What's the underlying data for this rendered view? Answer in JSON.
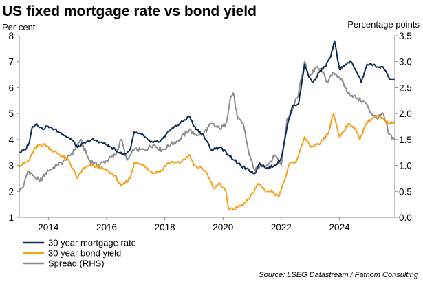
{
  "chart_data": {
    "type": "line",
    "title": "US fixed mortgage rate vs bond yield",
    "ylabel_left": "Per cent",
    "ylabel_right": "Percentage points",
    "source": "Source: LSEG Datastream / Fathom Consulting",
    "xlim": [
      2013.0,
      2025.9
    ],
    "ylim_left": [
      1,
      8
    ],
    "ylim_right": [
      0.0,
      3.5
    ],
    "x_ticks": [
      2014,
      2016,
      2018,
      2020,
      2022,
      2024
    ],
    "x_tick_labels": [
      "2014",
      "2016",
      "2018",
      "2020",
      "2022",
      "2024"
    ],
    "y_left_ticks": [
      1,
      2,
      3,
      4,
      5,
      6,
      7,
      8
    ],
    "y_left_tick_labels": [
      "1",
      "2",
      "3",
      "4",
      "5",
      "6",
      "7",
      "8"
    ],
    "y_right_ticks": [
      0.0,
      0.5,
      1.0,
      1.5,
      2.0,
      2.5,
      3.0,
      3.5
    ],
    "y_right_tick_labels": [
      "0.0",
      "0.5",
      "1.0",
      "1.5",
      "2.0",
      "2.5",
      "3.0",
      "3.5"
    ],
    "colors": {
      "mortgage": "#0d2b52",
      "bond": "#f5a01a",
      "spread": "#8c8c8c",
      "axis": "#888888"
    },
    "legend": [
      {
        "key": "mortgage",
        "label": "30 year mortgage rate"
      },
      {
        "key": "bond",
        "label": "30 year bond yield"
      },
      {
        "key": "spread",
        "label": "Spread (RHS)"
      }
    ],
    "series": [
      {
        "key": "mortgage",
        "name": "30 year mortgage rate",
        "axis": "left",
        "points": [
          [
            2013.0,
            3.5
          ],
          [
            2013.2,
            3.6
          ],
          [
            2013.35,
            3.9
          ],
          [
            2013.45,
            4.5
          ],
          [
            2013.6,
            4.6
          ],
          [
            2013.8,
            4.4
          ],
          [
            2013.95,
            4.5
          ],
          [
            2014.2,
            4.4
          ],
          [
            2014.5,
            4.2
          ],
          [
            2014.8,
            4.0
          ],
          [
            2015.0,
            3.7
          ],
          [
            2015.3,
            3.9
          ],
          [
            2015.5,
            4.0
          ],
          [
            2015.8,
            3.9
          ],
          [
            2016.0,
            3.8
          ],
          [
            2016.3,
            3.6
          ],
          [
            2016.6,
            3.4
          ],
          [
            2016.8,
            3.6
          ],
          [
            2016.95,
            4.3
          ],
          [
            2017.2,
            4.2
          ],
          [
            2017.5,
            3.9
          ],
          [
            2017.8,
            3.9
          ],
          [
            2018.0,
            4.1
          ],
          [
            2018.2,
            4.4
          ],
          [
            2018.5,
            4.6
          ],
          [
            2018.85,
            4.9
          ],
          [
            2019.0,
            4.5
          ],
          [
            2019.3,
            4.2
          ],
          [
            2019.6,
            3.6
          ],
          [
            2019.9,
            3.7
          ],
          [
            2020.2,
            3.4
          ],
          [
            2020.4,
            3.2
          ],
          [
            2020.6,
            3.0
          ],
          [
            2020.9,
            2.8
          ],
          [
            2021.1,
            2.7
          ],
          [
            2021.25,
            3.1
          ],
          [
            2021.5,
            2.9
          ],
          [
            2021.8,
            3.0
          ],
          [
            2022.0,
            3.3
          ],
          [
            2022.2,
            4.5
          ],
          [
            2022.4,
            5.3
          ],
          [
            2022.6,
            5.4
          ],
          [
            2022.8,
            6.9
          ],
          [
            2022.95,
            6.4
          ],
          [
            2023.1,
            6.2
          ],
          [
            2023.3,
            6.6
          ],
          [
            2023.5,
            6.8
          ],
          [
            2023.7,
            7.2
          ],
          [
            2023.83,
            7.8
          ],
          [
            2024.0,
            6.7
          ],
          [
            2024.2,
            6.9
          ],
          [
            2024.4,
            7.0
          ],
          [
            2024.6,
            6.6
          ],
          [
            2024.75,
            6.2
          ],
          [
            2024.95,
            6.9
          ],
          [
            2025.1,
            6.9
          ],
          [
            2025.3,
            6.8
          ],
          [
            2025.5,
            6.8
          ],
          [
            2025.65,
            6.5
          ],
          [
            2025.75,
            6.3
          ],
          [
            2025.9,
            6.3
          ]
        ]
      },
      {
        "key": "bond",
        "name": "30 year bond yield",
        "axis": "left",
        "points": [
          [
            2013.0,
            3.0
          ],
          [
            2013.2,
            3.1
          ],
          [
            2013.35,
            3.2
          ],
          [
            2013.5,
            3.6
          ],
          [
            2013.7,
            3.8
          ],
          [
            2013.9,
            3.8
          ],
          [
            2014.1,
            3.6
          ],
          [
            2014.4,
            3.4
          ],
          [
            2014.7,
            3.2
          ],
          [
            2015.0,
            2.5
          ],
          [
            2015.2,
            2.9
          ],
          [
            2015.5,
            3.0
          ],
          [
            2015.8,
            2.9
          ],
          [
            2016.0,
            2.8
          ],
          [
            2016.3,
            2.6
          ],
          [
            2016.5,
            2.2
          ],
          [
            2016.8,
            2.5
          ],
          [
            2016.95,
            3.1
          ],
          [
            2017.3,
            3.0
          ],
          [
            2017.6,
            2.7
          ],
          [
            2017.9,
            2.8
          ],
          [
            2018.1,
            3.1
          ],
          [
            2018.5,
            3.1
          ],
          [
            2018.85,
            3.4
          ],
          [
            2019.0,
            3.0
          ],
          [
            2019.4,
            2.8
          ],
          [
            2019.7,
            2.1
          ],
          [
            2019.9,
            2.3
          ],
          [
            2020.1,
            2.0
          ],
          [
            2020.2,
            1.3
          ],
          [
            2020.35,
            1.3
          ],
          [
            2020.5,
            1.4
          ],
          [
            2020.7,
            1.5
          ],
          [
            2020.9,
            1.7
          ],
          [
            2021.2,
            2.3
          ],
          [
            2021.5,
            2.0
          ],
          [
            2021.7,
            2.0
          ],
          [
            2021.9,
            1.8
          ],
          [
            2022.1,
            2.4
          ],
          [
            2022.3,
            3.1
          ],
          [
            2022.5,
            3.1
          ],
          [
            2022.8,
            4.1
          ],
          [
            2023.0,
            3.7
          ],
          [
            2023.3,
            3.8
          ],
          [
            2023.6,
            4.2
          ],
          [
            2023.8,
            5.0
          ],
          [
            2024.0,
            4.1
          ],
          [
            2024.3,
            4.6
          ],
          [
            2024.5,
            4.5
          ],
          [
            2024.7,
            4.0
          ],
          [
            2024.9,
            4.6
          ],
          [
            2025.1,
            4.8
          ],
          [
            2025.3,
            4.9
          ],
          [
            2025.5,
            4.8
          ],
          [
            2025.7,
            4.6
          ],
          [
            2025.9,
            4.7
          ]
        ]
      },
      {
        "key": "spread",
        "name": "Spread (RHS)",
        "axis": "right",
        "points": [
          [
            2013.0,
            0.5
          ],
          [
            2013.15,
            0.6
          ],
          [
            2013.3,
            0.9
          ],
          [
            2013.5,
            0.8
          ],
          [
            2013.7,
            0.7
          ],
          [
            2014.0,
            0.9
          ],
          [
            2014.3,
            1.0
          ],
          [
            2014.6,
            1.1
          ],
          [
            2014.9,
            1.3
          ],
          [
            2015.1,
            1.5
          ],
          [
            2015.4,
            1.1
          ],
          [
            2015.7,
            1.0
          ],
          [
            2016.0,
            1.1
          ],
          [
            2016.3,
            1.2
          ],
          [
            2016.5,
            1.5
          ],
          [
            2016.7,
            1.1
          ],
          [
            2016.95,
            1.3
          ],
          [
            2017.3,
            1.3
          ],
          [
            2017.6,
            1.4
          ],
          [
            2017.9,
            1.3
          ],
          [
            2018.2,
            1.4
          ],
          [
            2018.5,
            1.5
          ],
          [
            2018.85,
            1.7
          ],
          [
            2019.0,
            1.6
          ],
          [
            2019.3,
            1.6
          ],
          [
            2019.6,
            1.8
          ],
          [
            2019.9,
            1.7
          ],
          [
            2020.1,
            1.8
          ],
          [
            2020.25,
            2.3
          ],
          [
            2020.35,
            2.4
          ],
          [
            2020.5,
            1.9
          ],
          [
            2020.7,
            1.8
          ],
          [
            2020.9,
            1.2
          ],
          [
            2021.1,
            0.9
          ],
          [
            2021.3,
            1.0
          ],
          [
            2021.5,
            1.0
          ],
          [
            2021.8,
            1.2
          ],
          [
            2022.0,
            1.0
          ],
          [
            2022.2,
            1.9
          ],
          [
            2022.4,
            2.1
          ],
          [
            2022.6,
            2.4
          ],
          [
            2022.8,
            3.0
          ],
          [
            2022.95,
            2.7
          ],
          [
            2023.2,
            2.9
          ],
          [
            2023.4,
            2.8
          ],
          [
            2023.6,
            2.6
          ],
          [
            2023.8,
            2.8
          ],
          [
            2024.0,
            2.7
          ],
          [
            2024.3,
            2.4
          ],
          [
            2024.6,
            2.3
          ],
          [
            2024.9,
            2.2
          ],
          [
            2025.1,
            2.0
          ],
          [
            2025.3,
            1.9
          ],
          [
            2025.5,
            2.0
          ],
          [
            2025.7,
            1.6
          ],
          [
            2025.9,
            1.5
          ]
        ]
      }
    ]
  }
}
